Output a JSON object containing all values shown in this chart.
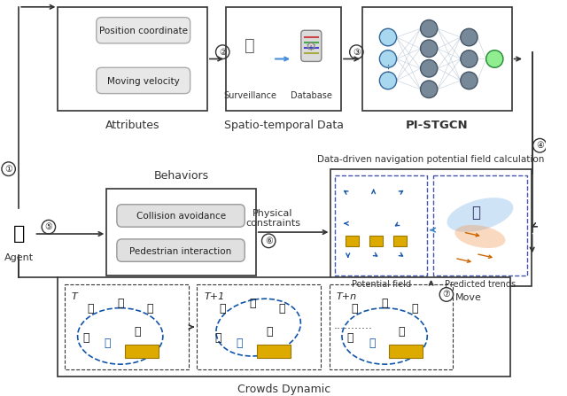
{
  "title": "",
  "bg_color": "#ffffff",
  "box_colors": {
    "attributes": "#ffffff",
    "spatio": "#ffffff",
    "pistgcn": "#ffffff",
    "behaviors": "#ffffff",
    "data_driven": "#ffffff",
    "crowds": "#ffffff",
    "attr_item": "#e8e8e8",
    "behav_item": "#e8e8e8"
  },
  "text_colors": {
    "label": "#222222",
    "caption": "#333333"
  },
  "arrow_color": "#333333",
  "blue_arrow": "#1e6fb5",
  "circle_nums": [
    "①",
    "②",
    "③",
    "④",
    "⑤",
    "⑥",
    "⑦"
  ],
  "labels": {
    "attributes": "Attributes",
    "spatio": "Spatio-temporal Data",
    "pistgcn": "PI-STGCN",
    "behaviors": "Behaviors",
    "data_driven_title": "Data-driven navigation potential field calculation",
    "potential_field": "Potential field",
    "predicted_trends": "Predicted trends",
    "physical_constraints": "Physical\nconstraints",
    "crowds_dynamic": "Crowds Dynamic",
    "agent": "Agent",
    "move": "Move",
    "position_coordinate": "Position coordinate",
    "moving_velocity": "Moving velocity",
    "collision_avoidance": "Collision avoidance",
    "pedestrian_interaction": "Pedestrian interaction",
    "surveillance": "Surveillance",
    "database": "Database",
    "T": "T",
    "T1": "T+1",
    "Tn": "T+n",
    "dots": "..........."
  }
}
